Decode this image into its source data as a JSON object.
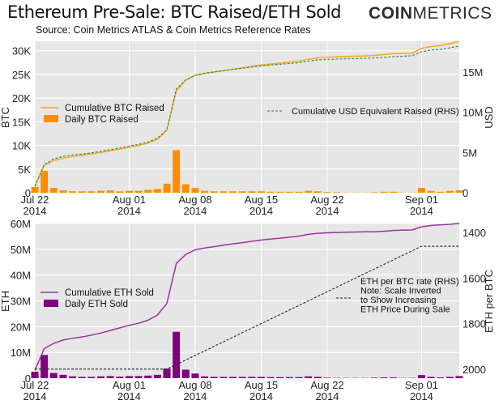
{
  "header": {
    "title": "Ethereum Pre-Sale: BTC Raised/ETH Sold",
    "subtitle": "Source: Coin Metrics ATLAS & Coin Metrics Reference Rates",
    "brand_bold": "COIN",
    "brand_light": "METRICS"
  },
  "colors": {
    "btc": "#ff8c00",
    "btc_line": "#f5a623",
    "usd": "#2e8b3e",
    "eth": "#800080",
    "eth_line": "#9932a0",
    "rate": "#222222",
    "panel": "#e6e6e6",
    "grid": "#ffffff"
  },
  "chart_data": [
    {
      "type": "bar+line",
      "ylabel": "BTC",
      "y2label": "USD",
      "ylim": [
        0,
        32000
      ],
      "y2lim": [
        0,
        18800000
      ],
      "yticks": [
        0,
        5000,
        10000,
        15000,
        20000,
        25000,
        30000
      ],
      "yticklabels": [
        "0",
        "5K",
        "10K",
        "15K",
        "20K",
        "25K",
        "30K"
      ],
      "y2ticks": [
        0,
        5000000,
        10000000,
        15000000
      ],
      "y2ticklabels": [
        "0",
        "5M",
        "10M",
        "15M"
      ],
      "xlim": [
        0,
        45
      ],
      "xticks": [
        0,
        10,
        17,
        24,
        31,
        41
      ],
      "xticklabels": [
        "Jul 22\n2014",
        "Aug 01\n2014",
        "Aug 08\n2014",
        "Aug 15\n2014",
        "Aug 22\n2014",
        "Sep 01\n2014"
      ],
      "legend_left": [
        "Cumulative BTC Raised",
        "Daily BTC Raised"
      ],
      "legend_right": [
        "Cumulative USD Equivalent Raised (RHS)"
      ],
      "series": [
        {
          "name": "Cumulative BTC Raised",
          "kind": "line",
          "axis": "left",
          "x": [
            0,
            1,
            2,
            3,
            4,
            5,
            6,
            7,
            8,
            9,
            10,
            11,
            12,
            13,
            14,
            15,
            16,
            17,
            18,
            19,
            20,
            21,
            22,
            23,
            24,
            25,
            26,
            27,
            28,
            29,
            30,
            31,
            32,
            33,
            34,
            35,
            36,
            37,
            38,
            39,
            40,
            41,
            42,
            43,
            44,
            45
          ],
          "values": [
            1300,
            5800,
            6800,
            7300,
            7650,
            7900,
            8200,
            8500,
            8900,
            9200,
            9600,
            10000,
            10500,
            11300,
            13200,
            21500,
            23800,
            24800,
            25200,
            25500,
            25800,
            26100,
            26400,
            26700,
            27000,
            27200,
            27400,
            27600,
            27800,
            28200,
            28500,
            28650,
            28750,
            28800,
            28850,
            28900,
            29000,
            29200,
            29400,
            29450,
            29500,
            30500,
            30900,
            31100,
            31500,
            32000
          ]
        },
        {
          "name": "Cumulative USD Equivalent Raised (RHS)",
          "kind": "line",
          "axis": "right",
          "dashed": true,
          "x": [
            0,
            1,
            2,
            3,
            4,
            5,
            6,
            7,
            8,
            9,
            10,
            11,
            12,
            13,
            14,
            15,
            16,
            17,
            18,
            19,
            20,
            21,
            22,
            23,
            24,
            25,
            26,
            27,
            28,
            29,
            30,
            31,
            32,
            33,
            34,
            35,
            36,
            37,
            38,
            39,
            40,
            41,
            42,
            43,
            44,
            45
          ],
          "values": [
            800000,
            3500000,
            4200000,
            4500000,
            4700000,
            4800000,
            4950000,
            5150000,
            5350000,
            5550000,
            5800000,
            6000000,
            6300000,
            6800000,
            7800000,
            12900000,
            14000000,
            14600000,
            14850000,
            15000000,
            15150000,
            15300000,
            15450000,
            15600000,
            15750000,
            15850000,
            15950000,
            16050000,
            16150000,
            16350000,
            16500000,
            16550000,
            16600000,
            16620000,
            16650000,
            16680000,
            16720000,
            16800000,
            16900000,
            16950000,
            17000000,
            17500000,
            17700000,
            17800000,
            18000000,
            18200000
          ]
        },
        {
          "name": "Daily BTC Raised",
          "kind": "bar",
          "axis": "left",
          "x": [
            0,
            1,
            2,
            3,
            4,
            5,
            6,
            7,
            8,
            9,
            10,
            11,
            12,
            13,
            14,
            15,
            16,
            17,
            18,
            19,
            20,
            21,
            22,
            23,
            24,
            25,
            26,
            27,
            28,
            29,
            30,
            31,
            32,
            33,
            34,
            35,
            36,
            37,
            38,
            39,
            40,
            41,
            42,
            43,
            44,
            45
          ],
          "values": [
            1200,
            4600,
            1000,
            500,
            300,
            300,
            300,
            400,
            500,
            300,
            400,
            400,
            600,
            800,
            1900,
            9000,
            1800,
            1000,
            400,
            300,
            300,
            300,
            300,
            300,
            300,
            200,
            200,
            200,
            200,
            400,
            300,
            150,
            100,
            50,
            50,
            50,
            100,
            200,
            200,
            50,
            50,
            1000,
            400,
            200,
            400,
            500
          ]
        }
      ]
    },
    {
      "type": "bar+line",
      "ylabel": "ETH",
      "y2label": "ETH per BTC",
      "ylim": [
        0,
        60000000
      ],
      "y2lim": [
        2040,
        1360
      ],
      "yticks": [
        0,
        10000000,
        20000000,
        30000000,
        40000000,
        50000000,
        60000000
      ],
      "yticklabels": [
        "0",
        "10M",
        "20M",
        "30M",
        "40M",
        "50M",
        "60M"
      ],
      "y2ticks": [
        1400,
        1600,
        1800,
        2000
      ],
      "y2ticklabels": [
        "1400",
        "1600",
        "1800",
        "2000"
      ],
      "xlim": [
        0,
        45
      ],
      "xticks": [
        0,
        10,
        17,
        24,
        31,
        41
      ],
      "xticklabels": [
        "Jul 22\n2014",
        "Aug 01\n2014",
        "Aug 08\n2014",
        "Aug 15\n2014",
        "Aug 22\n2014",
        "Sep 01\n2014"
      ],
      "legend_left": [
        "Cumulative ETH Sold",
        "Daily ETH Sold"
      ],
      "legend_right": [
        "ETH per BTC rate (RHS)",
        "Note: Scale Inverted",
        "to Show Increasing",
        "ETH Price During Sale"
      ],
      "series": [
        {
          "name": "Cumulative ETH Sold",
          "kind": "line",
          "axis": "left",
          "x": [
            0,
            1,
            2,
            3,
            4,
            5,
            6,
            7,
            8,
            9,
            10,
            11,
            12,
            13,
            14,
            15,
            16,
            17,
            18,
            19,
            20,
            21,
            22,
            23,
            24,
            25,
            26,
            27,
            28,
            29,
            30,
            31,
            32,
            33,
            34,
            35,
            36,
            37,
            38,
            39,
            40,
            41,
            42,
            43,
            44,
            45
          ],
          "values": [
            3000000,
            11500000,
            13500000,
            14800000,
            15500000,
            16000000,
            16700000,
            17500000,
            18500000,
            19500000,
            20500000,
            21300000,
            22500000,
            24500000,
            29000000,
            44500000,
            48000000,
            49800000,
            50500000,
            51000000,
            51600000,
            52100000,
            52600000,
            53100000,
            53600000,
            54000000,
            54300000,
            54700000,
            55100000,
            55800000,
            56200000,
            56400000,
            56500000,
            56600000,
            56700000,
            56750000,
            56800000,
            57000000,
            57300000,
            57450000,
            57500000,
            58700000,
            59200000,
            59500000,
            59700000,
            60100000
          ]
        },
        {
          "name": "ETH per BTC rate (RHS)",
          "kind": "line",
          "axis": "right",
          "dashed": true,
          "x": [
            0,
            14,
            41,
            45
          ],
          "values": [
            2000,
            2000,
            1460,
            1460
          ]
        },
        {
          "name": "Daily ETH Sold",
          "kind": "bar",
          "axis": "left",
          "x": [
            0,
            1,
            2,
            3,
            4,
            5,
            6,
            7,
            8,
            9,
            10,
            11,
            12,
            13,
            14,
            15,
            16,
            17,
            18,
            19,
            20,
            21,
            22,
            23,
            24,
            25,
            26,
            27,
            28,
            29,
            30,
            31,
            32,
            33,
            34,
            35,
            36,
            37,
            38,
            39,
            40,
            41,
            42,
            43,
            44,
            45
          ],
          "values": [
            2500000,
            9000000,
            2000000,
            1300000,
            700000,
            500000,
            500000,
            700000,
            800000,
            600000,
            800000,
            800000,
            1000000,
            1300000,
            3700000,
            18000000,
            3300000,
            1800000,
            700000,
            500000,
            500000,
            500000,
            500000,
            500000,
            500000,
            400000,
            400000,
            400000,
            400000,
            700000,
            500000,
            200000,
            100000,
            100000,
            100000,
            100000,
            200000,
            300000,
            300000,
            100000,
            100000,
            1200000,
            500000,
            300000,
            500000,
            800000
          ]
        }
      ]
    }
  ]
}
